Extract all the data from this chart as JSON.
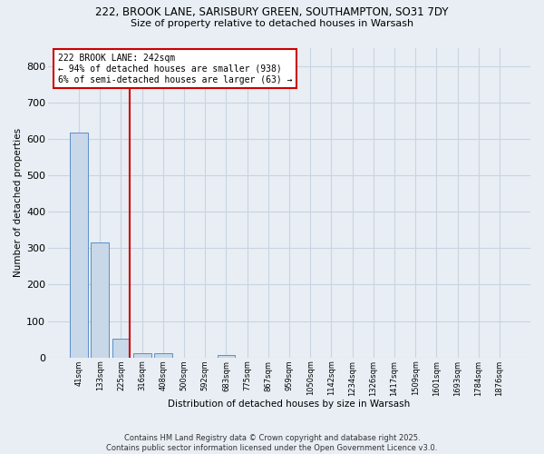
{
  "title_line1": "222, BROOK LANE, SARISBURY GREEN, SOUTHAMPTON, SO31 7DY",
  "title_line2": "Size of property relative to detached houses in Warsash",
  "xlabel": "Distribution of detached houses by size in Warsash",
  "ylabel": "Number of detached properties",
  "bar_categories": [
    "41sqm",
    "133sqm",
    "225sqm",
    "316sqm",
    "408sqm",
    "500sqm",
    "592sqm",
    "683sqm",
    "775sqm",
    "867sqm",
    "959sqm",
    "1050sqm",
    "1142sqm",
    "1234sqm",
    "1326sqm",
    "1417sqm",
    "1509sqm",
    "1601sqm",
    "1693sqm",
    "1784sqm",
    "1876sqm"
  ],
  "bar_values": [
    617,
    317,
    52,
    11,
    13,
    0,
    0,
    8,
    0,
    0,
    0,
    0,
    0,
    0,
    0,
    0,
    0,
    0,
    0,
    0,
    0
  ],
  "bar_color": "#c8d8e8",
  "bar_edge_color": "#5b8fc9",
  "vline_color": "#cc0000",
  "vline_bin_index": 2,
  "annotation_text": "222 BROOK LANE: 242sqm\n← 94% of detached houses are smaller (938)\n6% of semi-detached houses are larger (63) →",
  "annotation_box_color": "#cc0000",
  "annotation_text_color": "#000000",
  "annotation_bg": "#ffffff",
  "ylim": [
    0,
    850
  ],
  "yticks": [
    0,
    100,
    200,
    300,
    400,
    500,
    600,
    700,
    800
  ],
  "grid_color": "#c8d4e0",
  "bg_color": "#e8eef4",
  "footnote": "Contains HM Land Registry data © Crown copyright and database right 2025.\nContains public sector information licensed under the Open Government Licence v3.0."
}
